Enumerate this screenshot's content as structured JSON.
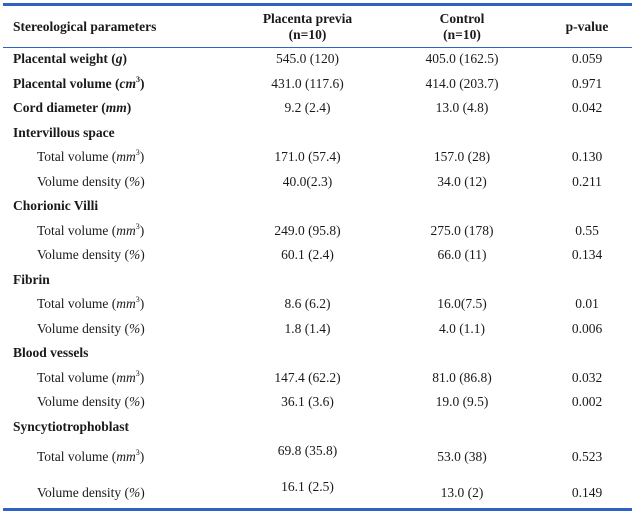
{
  "header": {
    "col1": "Stereological parameters",
    "col2_line1": "Placenta previa",
    "col2_line2": "(n=10)",
    "col3_line1": "Control",
    "col3_line2": "(n=10)",
    "col4": "p-value"
  },
  "rows": [
    {
      "label": "Placental weight (",
      "unit": "g",
      "sup": "",
      "tail": ")",
      "pp": "545.0 (120)",
      "ctrl": "405.0 (162.5)",
      "p": "0.059"
    },
    {
      "label": "Placental volume (",
      "unit": "cm",
      "sup": "3",
      "tail": ")",
      "pp": "431.0 (117.6)",
      "ctrl": "414.0 (203.7)",
      "p": "0.971"
    },
    {
      "label": "Cord diameter (",
      "unit": "mm",
      "sup": "",
      "tail": ")",
      "pp": "9.2 (2.4)",
      "ctrl": "13.0 (4.8)",
      "p": "0.042"
    },
    {
      "section": "Intervillous space"
    },
    {
      "sub": "Total volume (",
      "unit": "mm",
      "sup": "3",
      "tail": ")",
      "pp": "171.0 (57.4)",
      "ctrl": "157.0 (28)",
      "p": "0.130"
    },
    {
      "sub": "Volume density (",
      "unit": "%",
      "sup": "",
      "tail": ")",
      "pp": "40.0(2.3)",
      "ctrl": "34.0 (12)",
      "p": "0.211"
    },
    {
      "section": "Chorionic Villi"
    },
    {
      "sub": "Total volume (",
      "unit": "mm",
      "sup": "3",
      "tail": ")",
      "pp": "249.0 (95.8)",
      "ctrl": "275.0 (178)",
      "p": "0.55"
    },
    {
      "sub": "Volume density (",
      "unit": "%",
      "sup": "",
      "tail": ")",
      "pp": "60.1 (2.4)",
      "ctrl": "66.0 (11)",
      "p": "0.134"
    },
    {
      "section": "Fibrin"
    },
    {
      "sub": "Total volume (",
      "unit": "mm",
      "sup": "3",
      "tail": ")",
      "pp": "8.6 (6.2)",
      "ctrl": "16.0(7.5)",
      "p": "0.01"
    },
    {
      "sub": "Volume density (",
      "unit": "%",
      "sup": "",
      "tail": ")",
      "pp": "1.8 (1.4)",
      "ctrl": "4.0 (1.1)",
      "p": "0.006"
    },
    {
      "section": "Blood vessels"
    },
    {
      "sub": "Total volume (",
      "unit": "mm",
      "sup": "3",
      "tail": ")",
      "pp": "147.4 (62.2)",
      "ctrl": "81.0 (86.8)",
      "p": "0.032"
    },
    {
      "sub": "Volume density (",
      "unit": "%",
      "sup": "",
      "tail": ")",
      "pp": "36.1 (3.6)",
      "ctrl": "19.0 (9.5)",
      "p": "0.002"
    },
    {
      "section": "Syncytiotrophoblast"
    },
    {
      "sub": "Total volume (",
      "unit": "mm",
      "sup": "3",
      "tail": ")",
      "pp": "69.8 (35.8)",
      "ctrl": "53.0 (38)",
      "p": "0.523",
      "tall": true
    },
    {
      "sub": "Volume density (",
      "unit": "%",
      "sup": "",
      "tail": ")",
      "pp": "16.1 (2.5)",
      "ctrl": "13.0 (2)",
      "p": "0.149",
      "tall": true
    }
  ]
}
